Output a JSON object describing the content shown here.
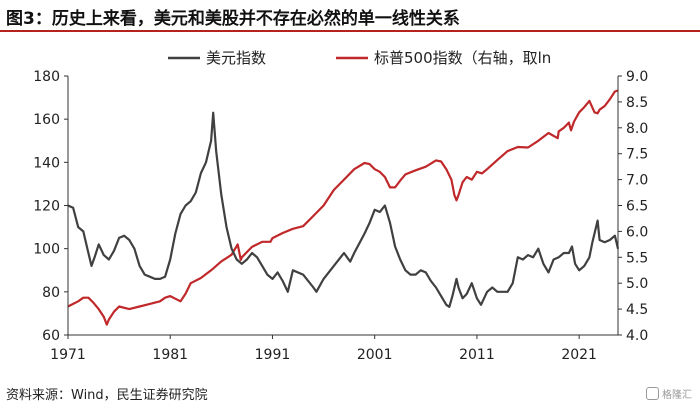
{
  "header": {
    "title": "图3：历史上来看，美元和美股并不存在必然的单一线性关系"
  },
  "source": "资料来源：Wind，民生证券研究院",
  "watermark": "格隆汇",
  "colors": {
    "accent": "#b8221e",
    "series_usd": "#404040",
    "series_sp": "#c0282a"
  },
  "chart_data": {
    "type": "line",
    "x_ticks": [
      1971,
      1981,
      1991,
      2001,
      2011,
      2021
    ],
    "xlim": [
      1971,
      2024.8
    ],
    "y_left": {
      "ticks": [
        60,
        80,
        100,
        120,
        140,
        160,
        180
      ],
      "lim": [
        60,
        180
      ]
    },
    "y_right": {
      "ticks": [
        "4.0",
        "4.5",
        "5.0",
        "5.5",
        "6.0",
        "6.5",
        "7.0",
        "7.5",
        "8.0",
        "8.5",
        "9.0"
      ],
      "lim": [
        4.0,
        9.0
      ]
    },
    "legend": {
      "placement": "top"
    },
    "series": [
      {
        "name": "美元指数",
        "axis": "left",
        "color": "#404040",
        "x": [
          1971.0,
          1971.5,
          1972.0,
          1972.5,
          1973.0,
          1973.3,
          1973.6,
          1974.0,
          1974.5,
          1975.0,
          1975.5,
          1976.0,
          1976.5,
          1977.0,
          1977.5,
          1978.0,
          1978.5,
          1979.0,
          1979.5,
          1980.0,
          1980.5,
          1981.0,
          1981.5,
          1982.0,
          1982.5,
          1983.0,
          1983.5,
          1984.0,
          1984.5,
          1985.0,
          1985.2,
          1985.5,
          1986.0,
          1986.5,
          1987.0,
          1987.5,
          1988.0,
          1988.5,
          1989.0,
          1989.5,
          1990.0,
          1990.5,
          1991.0,
          1991.5,
          1992.0,
          1992.5,
          1993.0,
          1994.0,
          1995.0,
          1995.3,
          1996.0,
          1997.0,
          1998.0,
          1998.6,
          1999.0,
          2000.0,
          2000.5,
          2001.0,
          2001.5,
          2002.0,
          2002.5,
          2003.0,
          2003.5,
          2004.0,
          2004.5,
          2005.0,
          2005.5,
          2006.0,
          2006.5,
          2007.0,
          2007.5,
          2008.0,
          2008.3,
          2008.6,
          2009.0,
          2009.2,
          2009.6,
          2010.0,
          2010.5,
          2011.0,
          2011.4,
          2012.0,
          2012.5,
          2013.0,
          2014.0,
          2014.5,
          2015.0,
          2015.5,
          2016.0,
          2016.5,
          2017.0,
          2017.5,
          2018.0,
          2018.5,
          2019.0,
          2019.5,
          2020.0,
          2020.3,
          2020.6,
          2021.0,
          2021.5,
          2022.0,
          2022.3,
          2022.8,
          2023.0,
          2023.5,
          2024.0,
          2024.5,
          2024.8
        ],
        "y": [
          120,
          119,
          110,
          108,
          98,
          92,
          96,
          102,
          97,
          95,
          99,
          105,
          106,
          104,
          100,
          92,
          88,
          87,
          86,
          86,
          87,
          95,
          107,
          116,
          120,
          122,
          126,
          135,
          140,
          150,
          163,
          145,
          125,
          110,
          100,
          95,
          93,
          95,
          98,
          96,
          92,
          88,
          86,
          89,
          85,
          80,
          90,
          88,
          82,
          80,
          86,
          92,
          98,
          94,
          98,
          107,
          112,
          118,
          117,
          120,
          112,
          101,
          95,
          90,
          88,
          88,
          90,
          89,
          85,
          82,
          78,
          74,
          73,
          78,
          86,
          82,
          77,
          79,
          84,
          77,
          74,
          80,
          82,
          80,
          80,
          84,
          96,
          95,
          97,
          96,
          100,
          93,
          89,
          95,
          96,
          98,
          98,
          101,
          93,
          90,
          92,
          96,
          103,
          113,
          104,
          103,
          104,
          106,
          100
        ]
      },
      {
        "name": "标普500指数（右轴，取ln",
        "axis": "right",
        "color": "#c0282a",
        "x": [
          1971.0,
          1971.5,
          1972.0,
          1972.5,
          1973.0,
          1973.5,
          1974.0,
          1974.5,
          1974.8,
          1975.0,
          1975.5,
          1976.0,
          1977.0,
          1978.0,
          1979.0,
          1980.0,
          1980.5,
          1981.0,
          1981.5,
          1982.0,
          1982.5,
          1983.0,
          1984.0,
          1985.0,
          1986.0,
          1987.0,
          1987.6,
          1987.9,
          1988.0,
          1989.0,
          1990.0,
          1990.8,
          1991.0,
          1992.0,
          1993.0,
          1994.0,
          1995.0,
          1996.0,
          1997.0,
          1998.0,
          1999.0,
          2000.0,
          2000.5,
          2001.0,
          2001.5,
          2002.0,
          2002.5,
          2003.0,
          2003.5,
          2004.0,
          2005.0,
          2006.0,
          2007.0,
          2007.5,
          2008.0,
          2008.5,
          2008.8,
          2009.0,
          2009.2,
          2009.6,
          2010.0,
          2010.5,
          2011.0,
          2011.5,
          2012.0,
          2013.0,
          2014.0,
          2015.0,
          2016.0,
          2017.0,
          2018.0,
          2018.9,
          2019.0,
          2019.5,
          2020.0,
          2020.2,
          2020.5,
          2021.0,
          2021.5,
          2022.0,
          2022.5,
          2022.8,
          2023.0,
          2023.5,
          2024.0,
          2024.5,
          2024.8
        ],
        "y": [
          4.55,
          4.6,
          4.65,
          4.72,
          4.72,
          4.62,
          4.5,
          4.35,
          4.2,
          4.3,
          4.45,
          4.55,
          4.5,
          4.55,
          4.6,
          4.65,
          4.72,
          4.75,
          4.7,
          4.65,
          4.8,
          5.0,
          5.1,
          5.25,
          5.42,
          5.55,
          5.75,
          5.45,
          5.5,
          5.7,
          5.8,
          5.8,
          5.87,
          5.97,
          6.05,
          6.1,
          6.3,
          6.5,
          6.8,
          7.0,
          7.2,
          7.32,
          7.3,
          7.2,
          7.15,
          7.05,
          6.85,
          6.85,
          6.98,
          7.1,
          7.18,
          7.25,
          7.37,
          7.35,
          7.2,
          7.0,
          6.7,
          6.6,
          6.7,
          6.95,
          7.05,
          7.0,
          7.15,
          7.12,
          7.2,
          7.38,
          7.55,
          7.63,
          7.62,
          7.75,
          7.9,
          7.8,
          7.93,
          8.0,
          8.1,
          7.95,
          8.12,
          8.3,
          8.4,
          8.52,
          8.3,
          8.28,
          8.35,
          8.42,
          8.55,
          8.7,
          8.72
        ]
      }
    ]
  }
}
